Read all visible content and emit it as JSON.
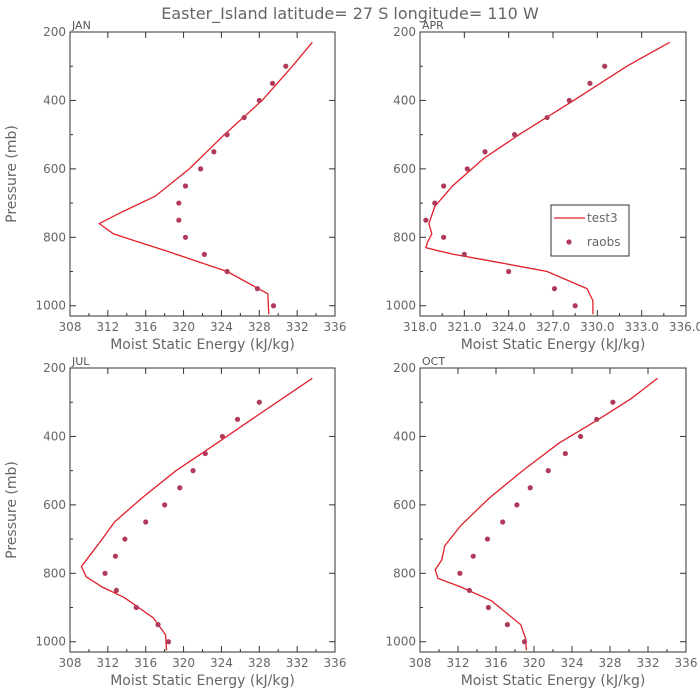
{
  "title": "Easter_Island  latitude= 27 S longitude= 110 W",
  "legend": {
    "model_label": "test3",
    "obs_label": "raobs"
  },
  "colors": {
    "model": "#e0202a",
    "obs": "#b03a5a",
    "frame": "#333333",
    "text": "#666666"
  },
  "chart_data": [
    {
      "type": "line",
      "panel": "JAN",
      "xlabel": "Moist Static Energy (kJ/kg)",
      "ylabel": "Pressure (mb)",
      "xlim": [
        308,
        336
      ],
      "ylim": [
        200,
        1030
      ],
      "y_inverted": true,
      "xticks": [
        308,
        312,
        316,
        320,
        324,
        328,
        332,
        336
      ],
      "xtick_labels": [
        "308",
        "312",
        "316",
        "320",
        "324",
        "328",
        "332",
        "336"
      ],
      "yticks": [
        200,
        400,
        600,
        800,
        1000
      ],
      "ytick_labels": [
        "200",
        "400",
        "600",
        "800",
        "1000"
      ],
      "show_ylabel": true,
      "legend": false,
      "series": [
        {
          "name": "test3",
          "kind": "line",
          "x": [
            333.6,
            331.5,
            328.3,
            324.3,
            320.6,
            317.0,
            313.2,
            311.1,
            312.6,
            318.2,
            324.6,
            328.9,
            329.0
          ],
          "y": [
            230,
            300,
            400,
            500,
            600,
            680,
            730,
            760,
            790,
            840,
            900,
            965,
            1025
          ]
        },
        {
          "name": "raobs",
          "kind": "scatter",
          "x": [
            330.8,
            329.4,
            328.0,
            326.4,
            324.6,
            323.2,
            321.8,
            320.2,
            319.5,
            319.5,
            320.2,
            322.2,
            324.6,
            327.8,
            329.5
          ],
          "y": [
            300,
            350,
            400,
            450,
            500,
            550,
            600,
            650,
            700,
            750,
            800,
            850,
            900,
            950,
            1000
          ]
        }
      ]
    },
    {
      "type": "line",
      "panel": "APR",
      "xlabel": "Moist Static Energy (kJ/kg)",
      "ylabel": "",
      "xlim": [
        318,
        336
      ],
      "ylim": [
        200,
        1030
      ],
      "y_inverted": true,
      "xticks": [
        318,
        321,
        324,
        327,
        330,
        333,
        336
      ],
      "xtick_labels": [
        "318.0",
        "321.0",
        "324.0",
        "327.0",
        "330.0",
        "333.0",
        "336.0"
      ],
      "yticks": [
        200,
        400,
        600,
        800,
        1000
      ],
      "ytick_labels": [
        "200",
        "400",
        "600",
        "800",
        "1000"
      ],
      "show_ylabel": false,
      "legend": true,
      "series": [
        {
          "name": "test3",
          "kind": "line",
          "x": [
            334.9,
            332.0,
            328.4,
            324.7,
            322.3,
            320.2,
            319.0,
            318.6,
            318.8,
            318.5,
            318.4,
            319.3,
            320.3,
            322.9,
            326.6,
            329.3,
            329.7,
            329.7
          ],
          "y": [
            230,
            300,
            400,
            500,
            570,
            650,
            710,
            760,
            790,
            815,
            830,
            840,
            850,
            870,
            900,
            950,
            985,
            1025
          ]
        },
        {
          "name": "raobs",
          "kind": "scatter",
          "x": [
            330.5,
            329.5,
            328.1,
            326.6,
            324.4,
            322.4,
            321.2,
            319.6,
            319.0,
            318.4,
            319.6,
            321.0,
            324.0,
            327.1,
            328.5
          ],
          "y": [
            300,
            350,
            400,
            450,
            500,
            550,
            600,
            650,
            700,
            750,
            800,
            850,
            900,
            950,
            1000
          ]
        }
      ]
    },
    {
      "type": "line",
      "panel": "JUL",
      "xlabel": "Moist Static Energy (kJ/kg)",
      "ylabel": "Pressure (mb)",
      "xlim": [
        308,
        336
      ],
      "ylim": [
        200,
        1030
      ],
      "y_inverted": true,
      "xticks": [
        308,
        312,
        316,
        320,
        324,
        328,
        332,
        336
      ],
      "xtick_labels": [
        "308",
        "312",
        "316",
        "320",
        "324",
        "328",
        "332",
        "336"
      ],
      "yticks": [
        200,
        400,
        600,
        800,
        1000
      ],
      "ytick_labels": [
        "200",
        "400",
        "600",
        "800",
        "1000"
      ],
      "show_ylabel": true,
      "legend": false,
      "series": [
        {
          "name": "test3",
          "kind": "line",
          "x": [
            333.6,
            330.4,
            327.2,
            323.5,
            319.2,
            315.6,
            312.7,
            311.4,
            310.3,
            309.2,
            309.7,
            311.4,
            313.7,
            316.8,
            318.1,
            318.2
          ],
          "y": [
            230,
            290,
            350,
            420,
            500,
            580,
            650,
            700,
            740,
            780,
            810,
            840,
            870,
            930,
            980,
            1025
          ]
        },
        {
          "name": "raobs",
          "kind": "scatter",
          "x": [
            328.0,
            325.7,
            324.1,
            322.3,
            321.0,
            319.6,
            318.0,
            316.0,
            313.8,
            312.8,
            311.7,
            312.9,
            315.0,
            317.3,
            318.4
          ],
          "y": [
            300,
            350,
            400,
            450,
            500,
            550,
            600,
            650,
            700,
            750,
            800,
            850,
            900,
            950,
            1000
          ]
        }
      ]
    },
    {
      "type": "line",
      "panel": "OCT",
      "xlabel": "Moist Static Energy (kJ/kg)",
      "ylabel": "",
      "xlim": [
        308,
        336
      ],
      "ylim": [
        200,
        1030
      ],
      "y_inverted": true,
      "xticks": [
        308,
        312,
        316,
        320,
        324,
        328,
        332,
        336
      ],
      "xtick_labels": [
        "308",
        "312",
        "316",
        "320",
        "324",
        "328",
        "332",
        "336"
      ],
      "yticks": [
        200,
        400,
        600,
        800,
        1000
      ],
      "ytick_labels": [
        "200",
        "400",
        "600",
        "800",
        "1000"
      ],
      "show_ylabel": false,
      "legend": false,
      "series": [
        {
          "name": "test3",
          "kind": "line",
          "x": [
            333.0,
            330.2,
            326.8,
            322.6,
            318.8,
            315.3,
            312.3,
            310.6,
            310.3,
            309.6,
            309.9,
            312.3,
            315.5,
            318.6,
            319.1,
            319.2
          ],
          "y": [
            230,
            290,
            350,
            420,
            500,
            580,
            660,
            720,
            760,
            790,
            815,
            840,
            880,
            950,
            990,
            1025
          ]
        },
        {
          "name": "raobs",
          "kind": "scatter",
          "x": [
            328.3,
            326.6,
            324.9,
            323.3,
            321.5,
            319.6,
            318.2,
            316.7,
            315.1,
            313.6,
            312.2,
            313.2,
            315.2,
            317.2,
            319.0
          ],
          "y": [
            300,
            350,
            400,
            450,
            500,
            550,
            600,
            650,
            700,
            750,
            800,
            850,
            900,
            950,
            1000
          ]
        }
      ]
    }
  ]
}
